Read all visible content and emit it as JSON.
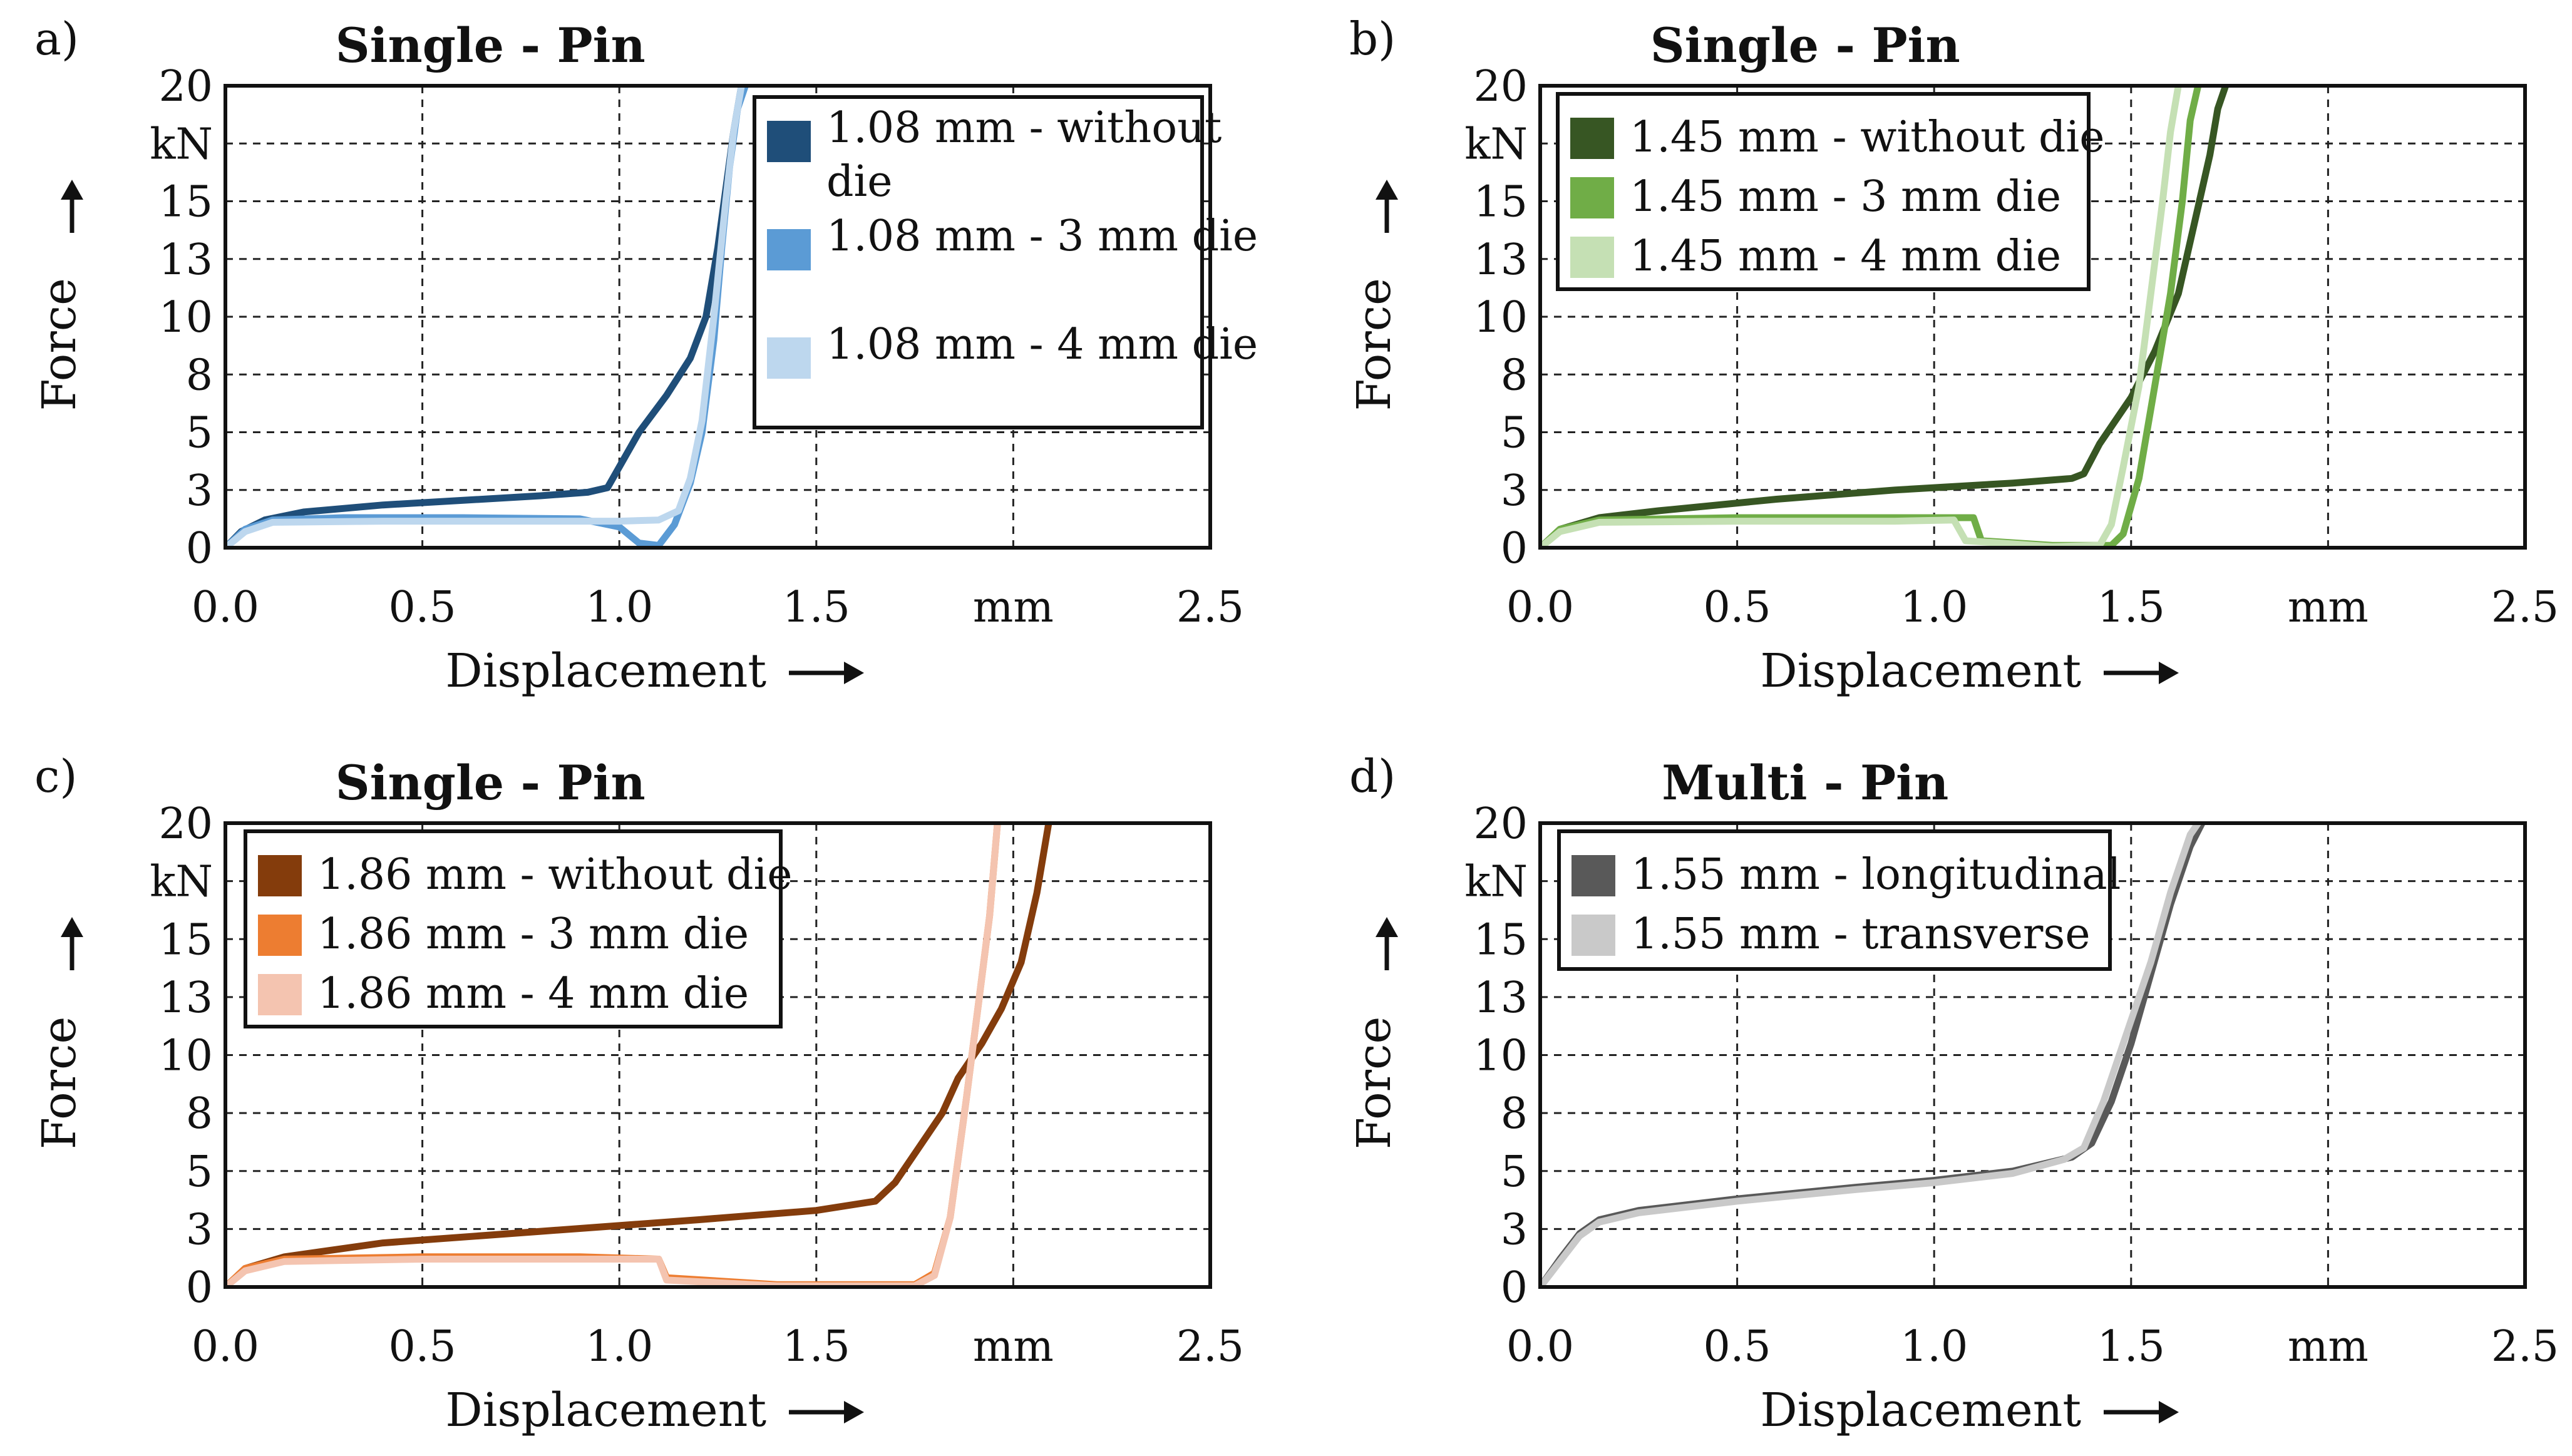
{
  "chart_data": [
    {
      "panel_label": "a)",
      "type": "line",
      "title": "Single - Pin",
      "xlabel": "Displacement",
      "ylabel": "Force",
      "x_unit": "mm",
      "y_unit": "kN",
      "xlim": [
        0,
        2.5
      ],
      "ylim": [
        0,
        20
      ],
      "x_ticks": [
        "0.0",
        "0.5",
        "1.0",
        "1.5",
        "mm",
        "2.5"
      ],
      "y_ticks": [
        "0",
        "3",
        "5",
        "8",
        "10",
        "13",
        "15",
        "kN",
        "20"
      ],
      "grid": true,
      "legend_position": "top-right",
      "series": [
        {
          "name": "1.08 mm - without die",
          "color": "#1f4e79",
          "points": [
            [
              0,
              0
            ],
            [
              0.04,
              0.7
            ],
            [
              0.1,
              1.2
            ],
            [
              0.2,
              1.55
            ],
            [
              0.4,
              1.85
            ],
            [
              0.6,
              2.05
            ],
            [
              0.8,
              2.25
            ],
            [
              0.92,
              2.4
            ],
            [
              0.97,
              2.6
            ],
            [
              1.0,
              3.5
            ],
            [
              1.05,
              5.0
            ],
            [
              1.12,
              6.6
            ],
            [
              1.18,
              8.2
            ],
            [
              1.22,
              10.0
            ],
            [
              1.25,
              13.0
            ],
            [
              1.27,
              15.5
            ],
            [
              1.29,
              18.0
            ],
            [
              1.31,
              20.0
            ]
          ]
        },
        {
          "name": "1.08 mm - 3 mm die",
          "color": "#5b9bd5",
          "points": [
            [
              0,
              0
            ],
            [
              0.05,
              0.8
            ],
            [
              0.12,
              1.2
            ],
            [
              0.3,
              1.3
            ],
            [
              0.6,
              1.3
            ],
            [
              0.9,
              1.25
            ],
            [
              1.0,
              0.9
            ],
            [
              1.05,
              0.2
            ],
            [
              1.1,
              0.1
            ],
            [
              1.14,
              1.0
            ],
            [
              1.18,
              2.8
            ],
            [
              1.21,
              5.0
            ],
            [
              1.24,
              9.0
            ],
            [
              1.26,
              13.0
            ],
            [
              1.28,
              16.5
            ],
            [
              1.3,
              19.0
            ],
            [
              1.32,
              20.0
            ]
          ]
        },
        {
          "name": "1.08 mm - 4 mm die",
          "color": "#bdd7ee",
          "points": [
            [
              0,
              0
            ],
            [
              0.05,
              0.7
            ],
            [
              0.12,
              1.1
            ],
            [
              0.4,
              1.15
            ],
            [
              0.8,
              1.15
            ],
            [
              1.0,
              1.15
            ],
            [
              1.1,
              1.2
            ],
            [
              1.15,
              1.6
            ],
            [
              1.18,
              3.0
            ],
            [
              1.21,
              5.5
            ],
            [
              1.24,
              10.0
            ],
            [
              1.27,
              15.0
            ],
            [
              1.29,
              18.0
            ],
            [
              1.31,
              20.0
            ]
          ]
        }
      ]
    },
    {
      "panel_label": "b)",
      "type": "line",
      "title": "Single - Pin",
      "xlabel": "Displacement",
      "ylabel": "Force",
      "x_unit": "mm",
      "y_unit": "kN",
      "xlim": [
        0,
        2.5
      ],
      "ylim": [
        0,
        20
      ],
      "x_ticks": [
        "0.0",
        "0.5",
        "1.0",
        "1.5",
        "mm",
        "2.5"
      ],
      "y_ticks": [
        "0",
        "3",
        "5",
        "8",
        "10",
        "13",
        "15",
        "kN",
        "20"
      ],
      "grid": true,
      "legend_position": "top-left",
      "series": [
        {
          "name": "1.45 mm - without die",
          "color": "#375623",
          "points": [
            [
              0,
              0
            ],
            [
              0.05,
              0.8
            ],
            [
              0.15,
              1.3
            ],
            [
              0.3,
              1.6
            ],
            [
              0.6,
              2.1
            ],
            [
              0.9,
              2.5
            ],
            [
              1.2,
              2.8
            ],
            [
              1.35,
              3.0
            ],
            [
              1.38,
              3.2
            ],
            [
              1.42,
              4.5
            ],
            [
              1.5,
              6.5
            ],
            [
              1.56,
              8.5
            ],
            [
              1.62,
              11.0
            ],
            [
              1.66,
              14.0
            ],
            [
              1.7,
              17.0
            ],
            [
              1.72,
              19.0
            ],
            [
              1.74,
              20.0
            ]
          ]
        },
        {
          "name": "1.45 mm - 3 mm die",
          "color": "#70ad47",
          "points": [
            [
              0,
              0
            ],
            [
              0.05,
              0.8
            ],
            [
              0.15,
              1.2
            ],
            [
              0.5,
              1.3
            ],
            [
              0.9,
              1.3
            ],
            [
              1.1,
              1.3
            ],
            [
              1.12,
              0.3
            ],
            [
              1.3,
              0.1
            ],
            [
              1.45,
              0.1
            ],
            [
              1.48,
              0.6
            ],
            [
              1.52,
              3.0
            ],
            [
              1.56,
              7.0
            ],
            [
              1.6,
              11.0
            ],
            [
              1.63,
              15.0
            ],
            [
              1.65,
              18.5
            ],
            [
              1.67,
              20.0
            ]
          ]
        },
        {
          "name": "1.45 mm - 4 mm die",
          "color": "#c5e0b4",
          "points": [
            [
              0,
              0
            ],
            [
              0.05,
              0.7
            ],
            [
              0.15,
              1.1
            ],
            [
              0.5,
              1.15
            ],
            [
              0.9,
              1.15
            ],
            [
              1.05,
              1.2
            ],
            [
              1.08,
              0.3
            ],
            [
              1.3,
              0.05
            ],
            [
              1.42,
              0.1
            ],
            [
              1.45,
              1.0
            ],
            [
              1.48,
              3.5
            ],
            [
              1.52,
              7.0
            ],
            [
              1.55,
              11.0
            ],
            [
              1.58,
              15.0
            ],
            [
              1.6,
              18.0
            ],
            [
              1.62,
              20.0
            ]
          ]
        }
      ]
    },
    {
      "panel_label": "c)",
      "type": "line",
      "title": "Single - Pin",
      "xlabel": "Displacement",
      "ylabel": "Force",
      "x_unit": "mm",
      "y_unit": "kN",
      "xlim": [
        0,
        2.5
      ],
      "ylim": [
        0,
        20
      ],
      "x_ticks": [
        "0.0",
        "0.5",
        "1.0",
        "1.5",
        "mm",
        "2.5"
      ],
      "y_ticks": [
        "0",
        "3",
        "5",
        "8",
        "10",
        "13",
        "15",
        "kN",
        "20"
      ],
      "grid": true,
      "legend_position": "top-left",
      "series": [
        {
          "name": "1.86 mm - without die",
          "color": "#843c0c",
          "points": [
            [
              0,
              0
            ],
            [
              0.05,
              0.8
            ],
            [
              0.15,
              1.3
            ],
            [
              0.4,
              1.9
            ],
            [
              0.8,
              2.4
            ],
            [
              1.2,
              2.9
            ],
            [
              1.5,
              3.3
            ],
            [
              1.65,
              3.7
            ],
            [
              1.7,
              4.5
            ],
            [
              1.76,
              6.0
            ],
            [
              1.82,
              7.5
            ],
            [
              1.86,
              9.0
            ],
            [
              1.92,
              10.5
            ],
            [
              1.97,
              12.0
            ],
            [
              2.02,
              14.0
            ],
            [
              2.06,
              17.0
            ],
            [
              2.09,
              20.0
            ]
          ]
        },
        {
          "name": "1.86 mm - 3 mm die",
          "color": "#ed7d31",
          "points": [
            [
              0,
              0
            ],
            [
              0.05,
              0.8
            ],
            [
              0.15,
              1.2
            ],
            [
              0.5,
              1.3
            ],
            [
              0.9,
              1.3
            ],
            [
              1.1,
              1.2
            ],
            [
              1.12,
              0.4
            ],
            [
              1.4,
              0.1
            ],
            [
              1.75,
              0.1
            ],
            [
              1.8,
              0.6
            ],
            [
              1.84,
              3.0
            ],
            [
              1.88,
              8.0
            ],
            [
              1.91,
              12.0
            ],
            [
              1.94,
              16.0
            ],
            [
              1.96,
              20.0
            ]
          ]
        },
        {
          "name": "1.86 mm - 4 mm die",
          "color": "#f4c4b0",
          "points": [
            [
              0,
              0
            ],
            [
              0.05,
              0.7
            ],
            [
              0.15,
              1.1
            ],
            [
              0.5,
              1.2
            ],
            [
              0.9,
              1.2
            ],
            [
              1.1,
              1.2
            ],
            [
              1.12,
              0.3
            ],
            [
              1.4,
              0.05
            ],
            [
              1.75,
              0.05
            ],
            [
              1.8,
              0.5
            ],
            [
              1.84,
              3.0
            ],
            [
              1.88,
              8.0
            ],
            [
              1.91,
              12.0
            ],
            [
              1.94,
              16.0
            ],
            [
              1.96,
              20.0
            ]
          ]
        }
      ]
    },
    {
      "panel_label": "d)",
      "type": "line",
      "title": "Multi - Pin",
      "xlabel": "Displacement",
      "ylabel": "Force",
      "x_unit": "mm",
      "y_unit": "kN",
      "xlim": [
        0,
        2.5
      ],
      "ylim": [
        0,
        20
      ],
      "x_ticks": [
        "0.0",
        "0.5",
        "1.0",
        "1.5",
        "mm",
        "2.5"
      ],
      "y_ticks": [
        "0",
        "3",
        "5",
        "8",
        "10",
        "13",
        "15",
        "kN",
        "20"
      ],
      "grid": true,
      "legend_position": "top-left",
      "series": [
        {
          "name": "1.55 mm - longitudinal",
          "color": "#595959",
          "points": [
            [
              0,
              0
            ],
            [
              0.05,
              1.2
            ],
            [
              0.1,
              2.3
            ],
            [
              0.15,
              2.9
            ],
            [
              0.25,
              3.3
            ],
            [
              0.5,
              3.8
            ],
            [
              0.8,
              4.3
            ],
            [
              1.0,
              4.6
            ],
            [
              1.2,
              5.0
            ],
            [
              1.35,
              5.6
            ],
            [
              1.4,
              6.2
            ],
            [
              1.45,
              8.0
            ],
            [
              1.5,
              10.5
            ],
            [
              1.55,
              13.5
            ],
            [
              1.6,
              16.5
            ],
            [
              1.65,
              19.0
            ],
            [
              1.68,
              20.0
            ]
          ]
        },
        {
          "name": "1.55 mm - transverse",
          "color": "#c9c9c9",
          "points": [
            [
              0,
              0
            ],
            [
              0.05,
              1.1
            ],
            [
              0.1,
              2.2
            ],
            [
              0.15,
              2.8
            ],
            [
              0.25,
              3.2
            ],
            [
              0.5,
              3.7
            ],
            [
              0.8,
              4.2
            ],
            [
              1.0,
              4.5
            ],
            [
              1.2,
              4.9
            ],
            [
              1.33,
              5.5
            ],
            [
              1.38,
              6.0
            ],
            [
              1.43,
              8.0
            ],
            [
              1.49,
              11.0
            ],
            [
              1.55,
              14.0
            ],
            [
              1.6,
              17.0
            ],
            [
              1.65,
              19.5
            ],
            [
              1.67,
              20.0
            ]
          ]
        }
      ]
    }
  ]
}
